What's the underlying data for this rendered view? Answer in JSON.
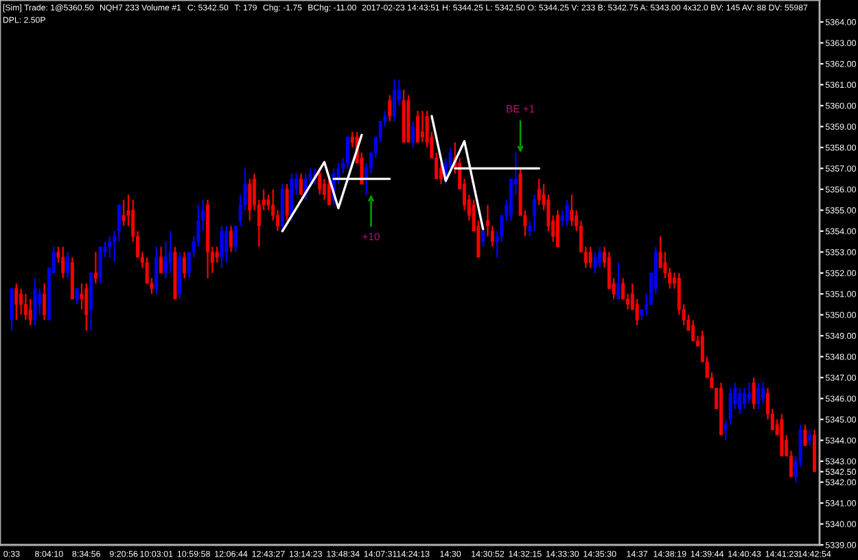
{
  "chart_data": {
    "type": "candlestick",
    "annotations": [
      "[Sim] Trade: 1@5360.50",
      "NQH7 233 Volume #1",
      "C: 5342.50",
      "T: 179",
      "Chg: -1.75",
      "BChg: -11.00",
      "2017-02-23 14:43:51 H: 5344.25 L: 5342.50 O: 5344.25 V: 233 B: 5342.75 A: 5343.00 4x32.0 BV: 145 AV: 88 DV: 55987",
      "DPL: 2.50P",
      {
        "text": "+10",
        "y": 5355.75
      },
      {
        "text": "BE +1",
        "y": 5357.75
      }
    ],
    "ohlc": [
      [
        5349.75,
        5351.25,
        5349.25,
        5351.25
      ],
      [
        5351.25,
        5351.5,
        5349.75,
        5350.5
      ],
      [
        5351,
        5351.25,
        5350,
        5350.5
      ],
      [
        5350.5,
        5351,
        5349.75,
        5350
      ],
      [
        5350.25,
        5350.75,
        5349.5,
        5349.75
      ],
      [
        5349.75,
        5351.75,
        5349.5,
        5351.25
      ],
      [
        5350.5,
        5351.25,
        5350,
        5351
      ],
      [
        5351,
        5351.5,
        5349.75,
        5350
      ],
      [
        5349.75,
        5352.25,
        5349.75,
        5352.25
      ],
      [
        5352,
        5353.25,
        5352,
        5353
      ],
      [
        5353,
        5353.25,
        5352.5,
        5352.75
      ],
      [
        5352.75,
        5353.25,
        5351.75,
        5352
      ],
      [
        5352,
        5353,
        5351.75,
        5352.75
      ],
      [
        5352.5,
        5352.75,
        5350.75,
        5350.75
      ],
      [
        5350.75,
        5351.25,
        5350.5,
        5351.25
      ],
      [
        5351,
        5351.5,
        5350.25,
        5350.75
      ],
      [
        5351.25,
        5351.5,
        5349.25,
        5350
      ],
      [
        5350.25,
        5352,
        5349.25,
        5352
      ],
      [
        5352,
        5353,
        5351.5,
        5351.75
      ],
      [
        5351.75,
        5353.25,
        5351.5,
        5353.25
      ],
      [
        5353,
        5353.5,
        5352.75,
        5353.25
      ],
      [
        5353.25,
        5353.75,
        5352.75,
        5353.5
      ],
      [
        5353.5,
        5354,
        5352.5,
        5353.75
      ],
      [
        5354,
        5355.25,
        5353.5,
        5355.25
      ],
      [
        5354.75,
        5355.5,
        5354.25,
        5354.5
      ],
      [
        5355,
        5355.75,
        5354.25,
        5354.75
      ],
      [
        5355,
        5355.5,
        5353.5,
        5353.75
      ],
      [
        5353.75,
        5354,
        5352.75,
        5352.75
      ],
      [
        5352.75,
        5353,
        5352.25,
        5352.5
      ],
      [
        5352.5,
        5352.75,
        5351.5,
        5351.5
      ],
      [
        5351.5,
        5351.75,
        5351,
        5351.25
      ],
      [
        5351.25,
        5353.25,
        5351,
        5352.75
      ],
      [
        5352.75,
        5353.25,
        5352,
        5352
      ],
      [
        5352,
        5353.5,
        5351.75,
        5352.75
      ],
      [
        5352.5,
        5354,
        5352,
        5353
      ],
      [
        5353,
        5353.25,
        5350.75,
        5350.75
      ],
      [
        5351,
        5353,
        5350.75,
        5352.75
      ],
      [
        5352.75,
        5353,
        5351.75,
        5352
      ],
      [
        5352,
        5353,
        5351.75,
        5353
      ],
      [
        5353,
        5353.75,
        5352.75,
        5353.5
      ],
      [
        5353.5,
        5355.25,
        5353.25,
        5354.5
      ],
      [
        5354.5,
        5355.5,
        5354,
        5355
      ],
      [
        5355.25,
        5355.5,
        5351.75,
        5353
      ],
      [
        5353,
        5353.25,
        5352,
        5352.5
      ],
      [
        5353,
        5353.25,
        5352.5,
        5352.75
      ],
      [
        5352.75,
        5354.25,
        5352.25,
        5354
      ],
      [
        5353,
        5354.25,
        5352.5,
        5354
      ],
      [
        5354,
        5354.25,
        5353,
        5353.25
      ],
      [
        5353.25,
        5354.25,
        5353,
        5354.25
      ],
      [
        5354.5,
        5355.75,
        5354.25,
        5355.25
      ],
      [
        5355.25,
        5357,
        5355,
        5356.25
      ],
      [
        5356.25,
        5356.5,
        5354.5,
        5355
      ],
      [
        5356.5,
        5356.75,
        5355,
        5355.25
      ],
      [
        5355.25,
        5355.5,
        5353.25,
        5354.25
      ],
      [
        5355.5,
        5356,
        5355,
        5355.25
      ],
      [
        5355.5,
        5355.75,
        5355,
        5355.25
      ],
      [
        5355.25,
        5356,
        5354.5,
        5354.75
      ],
      [
        5354.75,
        5355,
        5354,
        5354.25
      ],
      [
        5354.25,
        5356.25,
        5354,
        5356
      ],
      [
        5356,
        5356.25,
        5354.5,
        5354.75
      ],
      [
        5354.75,
        5356.75,
        5354.5,
        5356.5
      ],
      [
        5356,
        5356.75,
        5355.75,
        5356.5
      ],
      [
        5356.5,
        5356.75,
        5355.75,
        5355.75
      ],
      [
        5355.75,
        5356.75,
        5355.5,
        5356.5
      ],
      [
        5356.5,
        5357,
        5356.25,
        5356.75
      ],
      [
        5356.5,
        5357,
        5356.25,
        5356.75
      ],
      [
        5356.75,
        5357,
        5355.75,
        5356
      ],
      [
        5356.25,
        5356.5,
        5355.5,
        5355.75
      ],
      [
        5356.25,
        5356.5,
        5355.25,
        5355.25
      ],
      [
        5355.5,
        5357,
        5355.25,
        5356.75
      ],
      [
        5356.5,
        5357.25,
        5356.25,
        5357
      ],
      [
        5357,
        5357.5,
        5356.75,
        5357.25
      ],
      [
        5357.25,
        5358.5,
        5357,
        5358.5
      ],
      [
        5358.5,
        5358.75,
        5358,
        5358.25
      ],
      [
        5358.5,
        5358.75,
        5357.25,
        5357.25
      ],
      [
        5357.5,
        5357.75,
        5356.25,
        5356.25
      ],
      [
        5356.5,
        5357.25,
        5355.75,
        5357
      ],
      [
        5357,
        5357.75,
        5356.75,
        5357.75
      ],
      [
        5357.75,
        5358.5,
        5357.5,
        5358.5
      ],
      [
        5358.5,
        5359.25,
        5358.25,
        5359.25
      ],
      [
        5359.25,
        5359.75,
        5359,
        5359.5
      ],
      [
        5360.25,
        5360.5,
        5359.25,
        5359.5
      ],
      [
        5359.5,
        5361.25,
        5359.25,
        5360.75
      ],
      [
        5360.25,
        5361.25,
        5360,
        5360.75
      ],
      [
        5360.25,
        5360.75,
        5358.25,
        5358.25
      ],
      [
        5360.25,
        5360.5,
        5358.25,
        5358.25
      ],
      [
        5358.25,
        5359.25,
        5358,
        5359
      ],
      [
        5359.5,
        5359.75,
        5358.25,
        5358.25
      ],
      [
        5358.75,
        5359.75,
        5358.25,
        5358.5
      ],
      [
        5359.5,
        5359.75,
        5358,
        5358.25
      ],
      [
        5358.5,
        5358.75,
        5357.5,
        5357.5
      ],
      [
        5357.5,
        5357.75,
        5356.5,
        5356.5
      ],
      [
        5357,
        5357.25,
        5356.25,
        5356.5
      ],
      [
        5356.5,
        5357.5,
        5356.25,
        5357.25
      ],
      [
        5357,
        5358,
        5356.75,
        5357.75
      ],
      [
        5357.5,
        5358.25,
        5356.75,
        5357
      ],
      [
        5357.25,
        5357.5,
        5356,
        5356
      ],
      [
        5356.25,
        5356.5,
        5355,
        5355.25
      ],
      [
        5355.5,
        5355.75,
        5354.5,
        5354.75
      ],
      [
        5355.25,
        5355.5,
        5354,
        5354
      ],
      [
        5354.25,
        5354.5,
        5352.75,
        5352.75
      ],
      [
        5353.5,
        5354.25,
        5353.25,
        5354
      ],
      [
        5354.5,
        5355.25,
        5353.75,
        5354.25
      ],
      [
        5354,
        5354.25,
        5353.25,
        5353.5
      ],
      [
        5353.5,
        5354,
        5352.75,
        5353.75
      ],
      [
        5353.75,
        5354.75,
        5353.5,
        5354.75
      ],
      [
        5354.75,
        5355.5,
        5354.5,
        5355.25
      ],
      [
        5354.75,
        5356.5,
        5354.5,
        5356.5
      ],
      [
        5356.25,
        5357.75,
        5355.75,
        5356.5
      ],
      [
        5356.75,
        5357,
        5354.75,
        5354.75
      ],
      [
        5354.75,
        5355,
        5353.75,
        5354.25
      ],
      [
        5354,
        5354.5,
        5353.75,
        5354.25
      ],
      [
        5354.75,
        5355.75,
        5354,
        5355.5
      ],
      [
        5356,
        5356.5,
        5355.25,
        5355.5
      ],
      [
        5355.75,
        5356.25,
        5355,
        5355.25
      ],
      [
        5355.5,
        5355.75,
        5354,
        5354.25
      ],
      [
        5354.5,
        5354.75,
        5353.5,
        5353.75
      ],
      [
        5354.75,
        5355,
        5353.25,
        5353.25
      ],
      [
        5354.5,
        5355,
        5354.25,
        5354.75
      ],
      [
        5354.5,
        5355.5,
        5354.25,
        5355.25
      ],
      [
        5355,
        5355.75,
        5354.25,
        5354.5
      ],
      [
        5354.75,
        5355,
        5354,
        5354.25
      ],
      [
        5354.25,
        5354.5,
        5353,
        5353
      ],
      [
        5353,
        5353.25,
        5352.25,
        5352.5
      ],
      [
        5353,
        5353.25,
        5352.25,
        5352.5
      ],
      [
        5352.25,
        5353,
        5352,
        5352.75
      ],
      [
        5352.5,
        5353.25,
        5352.25,
        5353
      ],
      [
        5353,
        5353.25,
        5352.25,
        5352.5
      ],
      [
        5352.75,
        5353,
        5351.25,
        5351.25
      ],
      [
        5351.5,
        5351.75,
        5350.75,
        5351
      ],
      [
        5350.75,
        5352.5,
        5350.75,
        5351.5
      ],
      [
        5351.5,
        5351.75,
        5350.75,
        5350.75
      ],
      [
        5350.75,
        5351,
        5350.25,
        5350.5
      ],
      [
        5351,
        5351.5,
        5350.25,
        5350.25
      ],
      [
        5350.5,
        5350.75,
        5349.5,
        5349.75
      ],
      [
        5350,
        5350.25,
        5349.75,
        5350.25
      ],
      [
        5350.25,
        5351,
        5350,
        5350.5
      ],
      [
        5350.5,
        5352,
        5350.5,
        5352
      ],
      [
        5351.25,
        5353.25,
        5351,
        5353
      ],
      [
        5353,
        5353.75,
        5352.25,
        5352.25
      ],
      [
        5352.5,
        5353,
        5351.75,
        5352
      ],
      [
        5352,
        5352.25,
        5351.25,
        5351.5
      ],
      [
        5351.75,
        5352,
        5351.25,
        5351.5
      ],
      [
        5351.75,
        5352,
        5350,
        5350.25
      ],
      [
        5350.25,
        5350.5,
        5349.5,
        5349.75
      ],
      [
        5349.75,
        5350,
        5349.25,
        5349.25
      ],
      [
        5349.5,
        5349.75,
        5348.75,
        5348.75
      ],
      [
        5348.75,
        5349,
        5348.5,
        5348.5
      ],
      [
        5349,
        5349.25,
        5347.75,
        5347.75
      ],
      [
        5347.75,
        5348,
        5347,
        5347
      ],
      [
        5347,
        5347.25,
        5346.5,
        5346.5
      ],
      [
        5346.5,
        5346.5,
        5345.5,
        5345.5
      ],
      [
        5346.5,
        5346.75,
        5344.25,
        5344.25
      ],
      [
        5344.5,
        5345,
        5344,
        5344.75
      ],
      [
        5345,
        5346.5,
        5344.75,
        5346.25
      ],
      [
        5345.75,
        5346.75,
        5345.5,
        5346.5
      ],
      [
        5345.5,
        5346.5,
        5345.25,
        5346.25
      ],
      [
        5345.75,
        5346.5,
        5345.5,
        5346.25
      ],
      [
        5346,
        5346.75,
        5345.75,
        5346.25
      ],
      [
        5346.75,
        5347,
        5345.5,
        5345.75
      ],
      [
        5345.75,
        5346.75,
        5345.5,
        5346.5
      ],
      [
        5346,
        5346.75,
        5345.75,
        5346.5
      ],
      [
        5346.25,
        5346.5,
        5345,
        5345.25
      ],
      [
        5345.25,
        5345.5,
        5344.5,
        5344.5
      ],
      [
        5344.75,
        5345,
        5344.25,
        5344.25
      ],
      [
        5345,
        5345.25,
        5343.25,
        5343.25
      ],
      [
        5344,
        5344.25,
        5343.25,
        5343.25
      ],
      [
        5343.25,
        5343.5,
        5342.25,
        5342.25
      ],
      [
        5342.25,
        5343.25,
        5342,
        5343
      ],
      [
        5343,
        5344.75,
        5342.75,
        5344.5
      ],
      [
        5344.5,
        5344.75,
        5343.75,
        5343.75
      ],
      [
        5344,
        5344.5,
        5343.75,
        5344.25
      ],
      [
        5344.25,
        5344.5,
        5342.5,
        5342.5
      ]
    ],
    "colors": [
      "#0000ff",
      "#ff0000",
      "#ff0000",
      "#ff0000",
      "#ff0000",
      "#0000ff",
      "#0000ff",
      "#ff0000",
      "#0000ff",
      "#0000ff",
      "#ff0000",
      "#ff0000",
      "#0000ff",
      "#ff0000",
      "#0000ff",
      "#ff0000",
      "#ff0000",
      "#0000ff",
      "#ff0000",
      "#0000ff",
      "#0000ff",
      "#0000ff",
      "#0000ff",
      "#0000ff",
      "#ff0000",
      "#ff0000",
      "#ff0000",
      "#ff0000",
      "#ff0000",
      "#ff0000",
      "#ff0000",
      "#0000ff",
      "#ff0000",
      "#0000ff",
      "#0000ff",
      "#ff0000",
      "#0000ff",
      "#ff0000",
      "#0000ff",
      "#0000ff",
      "#0000ff",
      "#0000ff",
      "#ff0000",
      "#ff0000",
      "#ff0000",
      "#0000ff",
      "#0000ff",
      "#ff0000",
      "#0000ff",
      "#0000ff",
      "#0000ff",
      "#ff0000",
      "#ff0000",
      "#ff0000",
      "#ff0000",
      "#ff0000",
      "#ff0000",
      "#ff0000",
      "#0000ff",
      "#ff0000",
      "#0000ff",
      "#0000ff",
      "#ff0000",
      "#0000ff",
      "#0000ff",
      "#0000ff",
      "#ff0000",
      "#ff0000",
      "#ff0000",
      "#0000ff",
      "#0000ff",
      "#0000ff",
      "#0000ff",
      "#ff0000",
      "#ff0000",
      "#ff0000",
      "#0000ff",
      "#0000ff",
      "#0000ff",
      "#0000ff",
      "#0000ff",
      "#ff0000",
      "#0000ff",
      "#0000ff",
      "#ff0000",
      "#ff0000",
      "#0000ff",
      "#ff0000",
      "#ff0000",
      "#ff0000",
      "#ff0000",
      "#ff0000",
      "#ff0000",
      "#0000ff",
      "#0000ff",
      "#ff0000",
      "#ff0000",
      "#ff0000",
      "#ff0000",
      "#ff0000",
      "#ff0000",
      "#0000ff",
      "#ff0000",
      "#ff0000",
      "#0000ff",
      "#0000ff",
      "#0000ff",
      "#0000ff",
      "#0000ff",
      "#ff0000",
      "#ff0000",
      "#0000ff",
      "#0000ff",
      "#ff0000",
      "#ff0000",
      "#ff0000",
      "#ff0000",
      "#ff0000",
      "#0000ff",
      "#0000ff",
      "#ff0000",
      "#ff0000",
      "#ff0000",
      "#ff0000",
      "#ff0000",
      "#0000ff",
      "#0000ff",
      "#ff0000",
      "#ff0000",
      "#ff0000",
      "#0000ff",
      "#ff0000",
      "#ff0000",
      "#ff0000",
      "#ff0000",
      "#0000ff",
      "#0000ff",
      "#0000ff",
      "#0000ff",
      "#ff0000",
      "#ff0000",
      "#ff0000",
      "#ff0000",
      "#ff0000",
      "#ff0000",
      "#ff0000",
      "#ff0000",
      "#ff0000",
      "#ff0000",
      "#ff0000",
      "#ff0000",
      "#ff0000",
      "#ff0000",
      "#0000ff",
      "#0000ff",
      "#0000ff",
      "#0000ff",
      "#0000ff",
      "#0000ff",
      "#ff0000",
      "#0000ff",
      "#0000ff",
      "#ff0000",
      "#ff0000",
      "#ff0000",
      "#ff0000",
      "#ff0000",
      "#ff0000",
      "#0000ff",
      "#0000ff",
      "#ff0000",
      "#0000ff",
      "#ff0000"
    ],
    "series": [
      {
        "type": "line",
        "color": "#ffffff",
        "values": [
          null,
          null,
          null,
          null,
          null,
          null,
          null,
          null,
          null,
          null,
          null,
          null,
          null,
          null,
          null,
          null,
          null,
          null,
          null,
          null,
          null,
          null,
          null,
          null,
          null,
          null,
          null,
          null,
          null,
          null,
          null,
          null,
          null,
          null,
          null,
          null,
          null,
          null,
          null,
          null,
          null,
          null,
          null,
          null,
          null,
          null,
          null,
          null,
          null,
          null,
          null,
          null,
          null,
          null,
          null,
          null,
          null,
          null,
          5354.0,
          null,
          null,
          null,
          null,
          null,
          null,
          null,
          null,
          5357.3,
          null,
          null,
          5355.1,
          null,
          null,
          null,
          null,
          5358.6,
          null,
          null,
          null,
          null,
          null,
          null,
          null,
          null,
          null,
          null,
          null,
          null,
          null,
          null,
          null,
          null,
          null,
          null,
          null,
          null,
          null,
          null,
          null,
          null,
          null,
          null,
          null,
          null,
          null,
          null,
          null,
          null,
          null,
          null,
          null,
          null,
          null,
          null,
          null,
          null,
          null,
          null,
          null,
          null,
          null,
          null,
          null,
          null,
          null,
          null,
          null,
          null,
          null,
          null,
          null,
          null,
          null,
          null,
          null,
          null,
          null,
          null,
          null,
          null,
          null,
          null,
          null,
          null,
          null,
          null,
          null,
          null,
          null,
          null,
          null,
          null,
          null,
          null,
          null,
          null,
          null,
          null,
          null,
          null,
          null,
          null,
          null,
          null,
          null,
          null,
          null,
          null,
          null,
          null,
          null,
          null,
          null
        ]
      },
      {
        "type": "line",
        "color": "#ffffff",
        "values": [
          null,
          null,
          null,
          null,
          null,
          null,
          null,
          null,
          null,
          null,
          null,
          null,
          null,
          null,
          null,
          null,
          null,
          null,
          null,
          null,
          null,
          null,
          null,
          null,
          null,
          null,
          null,
          null,
          null,
          null,
          null,
          null,
          null,
          null,
          null,
          null,
          null,
          null,
          null,
          null,
          null,
          null,
          null,
          null,
          null,
          null,
          null,
          null,
          null,
          null,
          null,
          null,
          null,
          null,
          null,
          null,
          null,
          null,
          null,
          null,
          null,
          null,
          null,
          null,
          null,
          null,
          null,
          null,
          null,
          5356.5,
          null,
          null,
          null,
          null,
          null,
          null,
          null,
          null,
          null,
          null,
          null,
          5356.5,
          null,
          null,
          null,
          null,
          null,
          null,
          null,
          null,
          null,
          null,
          null,
          null,
          null,
          null,
          null,
          null,
          null,
          null,
          null,
          null,
          null,
          null,
          null,
          null,
          null,
          null,
          null,
          null,
          null,
          null,
          null,
          null,
          null,
          null,
          null,
          null,
          null,
          null,
          null,
          null,
          null,
          null,
          null,
          null,
          null,
          null,
          null,
          null,
          null,
          null,
          null,
          null,
          null,
          null,
          null,
          null,
          null,
          null,
          null,
          null,
          null,
          null,
          null,
          null,
          null,
          null,
          null,
          null,
          null,
          null,
          null,
          null,
          null,
          null,
          null,
          null,
          null,
          null,
          null,
          null,
          null,
          null,
          null,
          null,
          null,
          null,
          null,
          null,
          null,
          null,
          null
        ]
      },
      {
        "type": "line",
        "color": "#ffffff",
        "values": [
          null,
          null,
          null,
          null,
          null,
          null,
          null,
          null,
          null,
          null,
          null,
          null,
          null,
          null,
          null,
          null,
          null,
          null,
          null,
          null,
          null,
          null,
          null,
          null,
          null,
          null,
          null,
          null,
          null,
          null,
          null,
          null,
          null,
          null,
          null,
          null,
          null,
          null,
          null,
          null,
          null,
          null,
          null,
          null,
          null,
          null,
          null,
          null,
          null,
          null,
          null,
          null,
          null,
          null,
          null,
          null,
          null,
          null,
          null,
          null,
          null,
          null,
          null,
          null,
          null,
          null,
          null,
          null,
          null,
          null,
          null,
          null,
          null,
          null,
          null,
          null,
          null,
          null,
          null,
          null,
          null,
          null,
          null,
          null,
          null,
          null,
          null,
          null,
          null,
          null,
          5359.5,
          null,
          null,
          5356.4,
          null,
          null,
          null,
          5358.3,
          null,
          null,
          null,
          5354.1,
          null,
          null,
          null,
          null,
          null,
          null,
          null,
          null,
          null,
          null,
          null,
          null,
          null,
          null,
          null,
          null,
          null,
          null,
          null,
          null,
          null,
          null,
          null,
          null,
          null,
          null,
          null,
          null,
          null,
          null,
          null,
          null,
          null,
          null,
          null,
          null,
          null,
          null,
          null,
          null,
          null,
          null,
          null,
          null,
          null,
          null,
          null,
          null,
          null,
          null,
          null,
          null,
          null,
          null,
          null,
          null,
          null,
          null,
          null,
          null,
          null,
          null,
          null,
          null,
          null,
          null,
          null,
          null,
          null,
          null,
          null
        ]
      },
      {
        "type": "line",
        "color": "#ffffff",
        "values": [
          null,
          null,
          null,
          null,
          null,
          null,
          null,
          null,
          null,
          null,
          null,
          null,
          null,
          null,
          null,
          null,
          null,
          null,
          null,
          null,
          null,
          null,
          null,
          null,
          null,
          null,
          null,
          null,
          null,
          null,
          null,
          null,
          null,
          null,
          null,
          null,
          null,
          null,
          null,
          null,
          null,
          null,
          null,
          null,
          null,
          null,
          null,
          null,
          null,
          null,
          null,
          null,
          null,
          null,
          null,
          null,
          null,
          null,
          null,
          null,
          null,
          null,
          null,
          null,
          null,
          null,
          null,
          null,
          null,
          null,
          null,
          null,
          null,
          null,
          null,
          null,
          null,
          null,
          null,
          null,
          null,
          null,
          null,
          null,
          null,
          null,
          null,
          null,
          null,
          null,
          null,
          null,
          null,
          null,
          null,
          5357.0,
          null,
          null,
          null,
          null,
          null,
          null,
          null,
          null,
          null,
          null,
          null,
          null,
          null,
          null,
          null,
          null,
          null,
          5357.0,
          null,
          null,
          null,
          null,
          null,
          null,
          null,
          null,
          null,
          null,
          null,
          null,
          null,
          null,
          null,
          null,
          null,
          null,
          null,
          null,
          null,
          null,
          null,
          null,
          null,
          null,
          null,
          null,
          null,
          null,
          null,
          null,
          null,
          null,
          null,
          null,
          null,
          null,
          null,
          null,
          null,
          null,
          null,
          null,
          null,
          null,
          null,
          null,
          null,
          null,
          null,
          null,
          null,
          null,
          null,
          null,
          null,
          null,
          null
        ]
      }
    ],
    "ylim": [
      5339.0,
      5365.05
    ],
    "categories": [
      "0:33",
      null,
      null,
      null,
      null,
      null,
      null,
      null,
      "8:04:10",
      null,
      null,
      null,
      null,
      null,
      null,
      null,
      "8:34:56",
      null,
      null,
      null,
      null,
      null,
      null,
      null,
      "9:20:56",
      null,
      null,
      null,
      null,
      null,
      null,
      "10:03:01",
      null,
      null,
      null,
      null,
      null,
      null,
      null,
      "10:59:58",
      null,
      null,
      null,
      null,
      null,
      null,
      null,
      "12:06:44",
      null,
      null,
      null,
      null,
      null,
      null,
      null,
      "12:43:27",
      null,
      null,
      null,
      null,
      null,
      null,
      null,
      "13:14:23",
      null,
      null,
      null,
      null,
      null,
      null,
      null,
      "13:48:34",
      null,
      null,
      null,
      null,
      null,
      null,
      null,
      "14:07:31",
      null,
      null,
      null,
      null,
      null,
      null,
      "14:24:13",
      null,
      null,
      null,
      null,
      null,
      null,
      null,
      "14:30",
      null,
      null,
      null,
      null,
      null,
      null,
      null,
      "14:30:52",
      null,
      null,
      null,
      null,
      null,
      null,
      null,
      "14:32:15",
      null,
      null,
      null,
      null,
      null,
      null,
      null,
      "14:33:30",
      null,
      null,
      null,
      null,
      null,
      null,
      null,
      "14:35:30",
      null,
      null,
      null,
      null,
      null,
      null,
      null,
      "14:37",
      null,
      null,
      null,
      null,
      null,
      null,
      "14:38:19",
      null,
      null,
      null,
      null,
      null,
      null,
      null,
      "14:39:44",
      null,
      null,
      null,
      null,
      null,
      null,
      null,
      "14:40:43",
      null,
      null,
      null,
      null,
      null,
      null,
      null,
      "14:41:23",
      null,
      null,
      null,
      null,
      null,
      null,
      "14:42:54"
    ],
    "yticks": [
      {
        "value": 5339,
        "label": "5339.00"
      },
      {
        "value": 5340,
        "label": "5340.00"
      },
      {
        "value": 5341,
        "label": "5341.00"
      },
      {
        "value": 5342,
        "label": "5342.00"
      },
      {
        "value": 5342.5,
        "label": "5342.50"
      },
      {
        "value": 5343,
        "label": "5343.00"
      },
      {
        "value": 5344,
        "label": "5344.00"
      },
      {
        "value": 5345,
        "label": "5345.00"
      },
      {
        "value": 5346,
        "label": "5346.00"
      },
      {
        "value": 5347,
        "label": "5347.00"
      },
      {
        "value": 5348,
        "label": "5348.00"
      },
      {
        "value": 5349,
        "label": "5349.00"
      },
      {
        "value": 5350,
        "label": "5350.00"
      },
      {
        "value": 5351,
        "label": "5351.00"
      },
      {
        "value": 5352,
        "label": "5352.00"
      },
      {
        "value": 5353,
        "label": "5353.00"
      },
      {
        "value": 5354,
        "label": "5354.00"
      },
      {
        "value": 5355,
        "label": "5355.00"
      },
      {
        "value": 5356,
        "label": "5356.00"
      },
      {
        "value": 5357,
        "label": "5357.00"
      },
      {
        "value": 5358,
        "label": "5358.00"
      },
      {
        "value": 5359,
        "label": "5359.00"
      },
      {
        "value": 5360,
        "label": "5360.00"
      },
      {
        "value": 5361,
        "label": "5361.00"
      },
      {
        "value": 5362,
        "label": "5362.00"
      },
      {
        "value": 5363,
        "label": "5363.00"
      },
      {
        "value": 5364,
        "label": "5364.00"
      }
    ],
    "grid": false,
    "legend": false
  }
}
